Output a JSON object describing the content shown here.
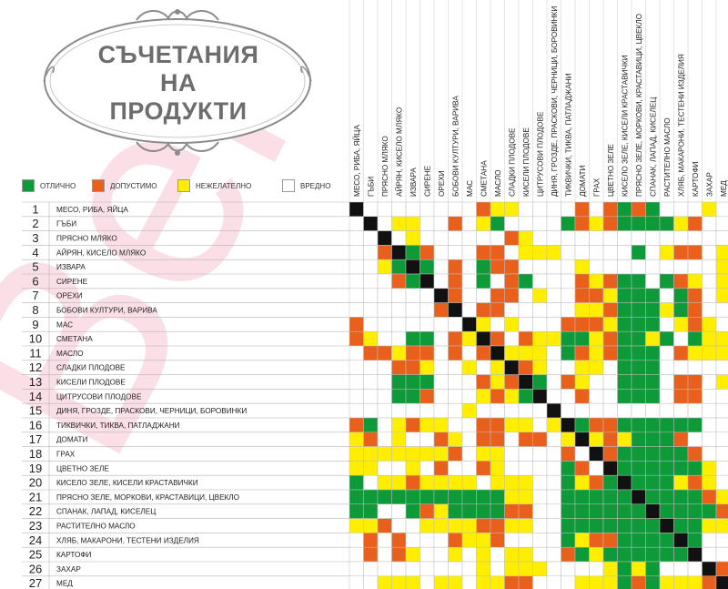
{
  "title": {
    "lines": [
      "СЪЧЕТАНИЯ",
      "НА",
      "ПРОДУКТИ"
    ]
  },
  "watermark": "Bel",
  "legend": [
    {
      "label": "ОТЛИЧНО",
      "color": "#0f9a3a"
    },
    {
      "label": "ДОПУСТИМО",
      "color": "#e8601c"
    },
    {
      "label": "НЕЖЕЛАТЕЛНО",
      "color": "#ffee00"
    },
    {
      "label": "ВРЕДНО",
      "color": "#ffffff"
    }
  ],
  "chart_data": {
    "type": "heatmap",
    "title": "СЪЧЕТАНИЯ НА ПРОДУКТИ",
    "rows": [
      "МЕСО, РИБА, ЯЙЦА",
      "ГЪБИ",
      "ПРЯСНО МЛЯКО",
      "АЙРЯН, КИСЕЛО МЛЯКО",
      "ИЗВАРА",
      "СИРЕНЕ",
      "ОРЕХИ",
      "БОБОВИ КУЛТУРИ, ВАРИВА",
      "МАС",
      "СМЕТАНА",
      "МАСЛО",
      "СЛАДКИ ПЛОДОВЕ",
      "КИСЕЛИ ПЛОДОВЕ",
      "ЦИТРУСОВИ ПЛОДОВЕ",
      "ДИНЯ, ГРОЗДЕ, ПРАСКОВИ, ЧЕРНИЦИ, БОРОВИНКИ",
      "ТИКВИЧКИ, ТИКВА, ПАТЛАДЖАНИ",
      "ДОМАТИ",
      "ГРАХ",
      "ЦВЕТНО ЗЕЛЕ",
      "КИСЕЛО ЗЕЛЕ, КИСЕЛИ КРАСТАВИЧКИ",
      "ПРЯСНО ЗЕЛЕ, МОРКОВИ, КРАСТАВИЦИ, ЦВЕКЛО",
      "СПАНАК, ЛАПАД, КИСЕЛЕЦ",
      "РАСТИТЕЛНО МАСЛО",
      "ХЛЯБ, МАКАРОНИ, ТЕСТЕНИ ИЗДЕЛИЯ",
      "КАРТОФИ",
      "ЗАХАР",
      "МЕД"
    ],
    "row_numbers": [
      "1",
      "2",
      "3",
      "4",
      "5",
      "6",
      "7",
      "8",
      "9",
      "10",
      "11",
      "12",
      "13",
      "14",
      "15",
      "16",
      "17",
      "18",
      "19",
      "20",
      "21",
      "22",
      "23",
      "24",
      "25",
      "26",
      "27"
    ],
    "columns": [
      "МЕСО, РИБА, ЯЙЦА",
      "ГЪБИ",
      "ПРЯСНО МЛЯКО",
      "АЙРЯН, КИСЕЛО МЛЯКО",
      "ИЗВАРА",
      "СИРЕНЕ",
      "ОРЕХИ",
      "БОБОВИ КУЛТУРИ, ВАРИВА",
      "МАС",
      "СМЕТАНА",
      "МАСЛО",
      "СЛАДКИ ПЛОДОВЕ",
      "КИСЕЛИ ПЛОДОВЕ",
      "ЦИТРУСОВИ ПЛОДОВЕ",
      "ДИНЯ, ГРОЗДЕ, ПРАСКОВИ, ЧЕРНИЦИ, БОРОВИНКИ",
      "ТИКВИЧКИ, ТИКВА, ПАТЛАДЖАНИ",
      "ДОМАТИ",
      "ГРАХ",
      "ЦВЕТНО ЗЕЛЕ",
      "КИСЕЛО ЗЕЛЕ, КИСЕЛИ КРАСТАВИЧКИ",
      "ПРЯСНО ЗЕЛЕ, МОРКОВИ, КРАСТАВИЦИ, ЦВЕКЛО",
      "СПАНАК, ЛАПАД, КИСЕЛЕЦ",
      "РАСТИТЕЛНО МАСЛО",
      "ХЛЯБ, МАКАРОНИ, ТЕСТЕНИ ИЗДЕЛИЯ",
      "КАРТОФИ",
      "ЗАХАР",
      "МЕД"
    ],
    "value_legend": {
      "G": "ОТЛИЧНО",
      "O": "ДОПУСТИМО",
      "Y": "НЕЖЕЛАТЕЛНО",
      "W": "ВРЕДНО",
      "D": "—"
    },
    "colors": {
      "G": "#0f9a3a",
      "O": "#e8601c",
      "Y": "#ffee00",
      "W": "#ffffff",
      "D": "#111111"
    },
    "matrix": [
      "DWWWWWWWWOYYWWWWOWOGOGWWWYW",
      "WDWYYWWOWYGWWWWGOYOGGGGYOWW",
      "WWDWYWWWWWWOYWWWWWWWWWWWWWW",
      "WWODGOWWWOOWYYYWWWWWGWYOOWY",
      "WWYGDGWOWGOOWWWWYWWWWWWWWWY",
      "WWWOGDWOWGWOGWWWOYOGGWGOYWY",
      "WWWWWWDOWWOOWYWWOOYGGGWGOWY",
      "WWWWWWODWOOWWWWWYYOGGGYGOWW",
      "OWWWWWWWDYWYWWWOOOYGGGWYOYW",
      "OYWWGGWOYDOWOYYGGYOGGYGWGYY",
      "WOOYOOWOWODYYYWGOYOGGGWOYYY",
      "WWWOOYWWYWYDOYWWYYWGGGWWWWW",
      "WWWGGGWWWOYODGWOYWWGGGWOOWY",
      "WWWGGOWWWYOYGDWWOWWGGGWOOWW",
      "WWWWWWWWYWWWWWDWWWWWWWWWWWW",
      "OGWYOYYWWOOYYWYDGOOGGGGGGWW",
      "YOWYWWOYWOOWOOWYDYOYGGGOWWW",
      "YYYYYYYOWYYWWWWOWDOGGGGGOWW",
      "YYWWYWOWWOYWWWWGOWDGGGGGGYW",
      "GWYYOYYYYWYYYWWGYOGDGGGYOYW",
      "GGGGGGGGGGGYYWWGGGGGDGGGGOY",
      "GGWWGOYGGGGOOWWGGGGGGDGGGGO",
      "YYOWWYYYYOOYYWWGGGGGGGDGGYY",
      "WOWOWWWOYYOWWWWGYOOGGGGDGWW",
      "WOWOYWWYWYWYYWWOGYGGGGGGDWW",
      "WWWWWWWWWYWYYYWWWWYGYGWWWDO",
      "WWYYYWYYWYYOOWWWYYYGOGYYYOD"
    ]
  }
}
